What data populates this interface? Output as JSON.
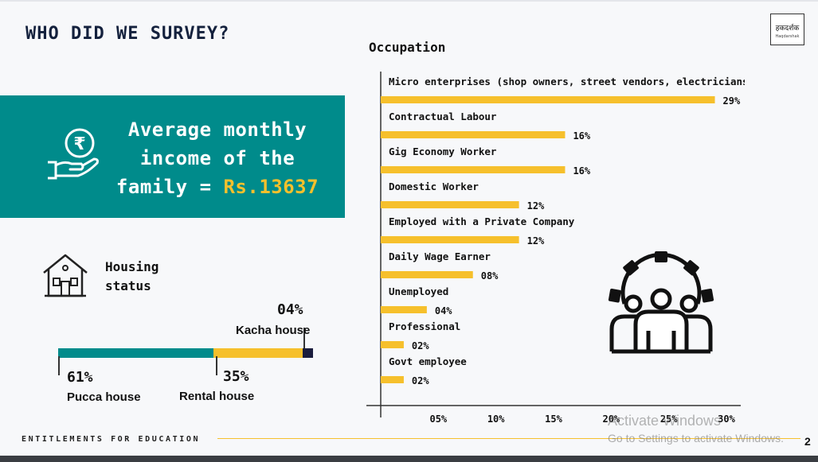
{
  "header": {
    "title": "WHO DID WE SURVEY?"
  },
  "logo": {
    "line1": "हकदर्शक",
    "line2": "Haqdarshak"
  },
  "income": {
    "line1": "Average monthly",
    "line2": "income of the",
    "line3_prefix": "family = ",
    "amount": "Rs.13637",
    "icon": "rupee-hand-icon"
  },
  "housing": {
    "title_line1": "Housing",
    "title_line2": "status",
    "icon": "house-icon",
    "segments": [
      {
        "label": "Pucca house",
        "pct_label": "61%",
        "value": 61,
        "color": "#008b8b"
      },
      {
        "label": "Rental house",
        "pct_label": "35%",
        "value": 35,
        "color": "#f6c02c"
      },
      {
        "label": "Kacha house",
        "pct_label": "04%",
        "value": 4,
        "color": "#1b1d3d"
      }
    ]
  },
  "chart_data": {
    "type": "bar",
    "orientation": "horizontal",
    "title": "Occupation",
    "categories": [
      "Micro enterprises (shop owners, street vendors, electricians, etc)",
      "Contractual Labour",
      "Gig Economy Worker",
      "Domestic Worker",
      "Employed with a Private Company",
      "Daily Wage Earner",
      "Unemployed",
      "Professional",
      "Govt employee"
    ],
    "values": [
      29,
      16,
      16,
      12,
      12,
      8,
      4,
      2,
      2
    ],
    "value_labels": [
      "29%",
      "16%",
      "16%",
      "12%",
      "12%",
      "08%",
      "04%",
      "02%",
      "02%"
    ],
    "x_ticks": [
      5,
      10,
      15,
      20,
      25,
      30
    ],
    "x_tick_labels": [
      "05%",
      "10%",
      "15%",
      "20%",
      "25%",
      "30%"
    ],
    "xlim": [
      0,
      30
    ],
    "bar_color": "#f6c02c",
    "grid": false
  },
  "decor": {
    "occupation_icon": "team-gear-icon"
  },
  "footer": {
    "text": "ENTITLEMENTS FOR EDUCATION",
    "page_number": "2"
  },
  "watermark": {
    "line1": "Activate Windows",
    "line2": "Go to Settings to activate Windows."
  }
}
